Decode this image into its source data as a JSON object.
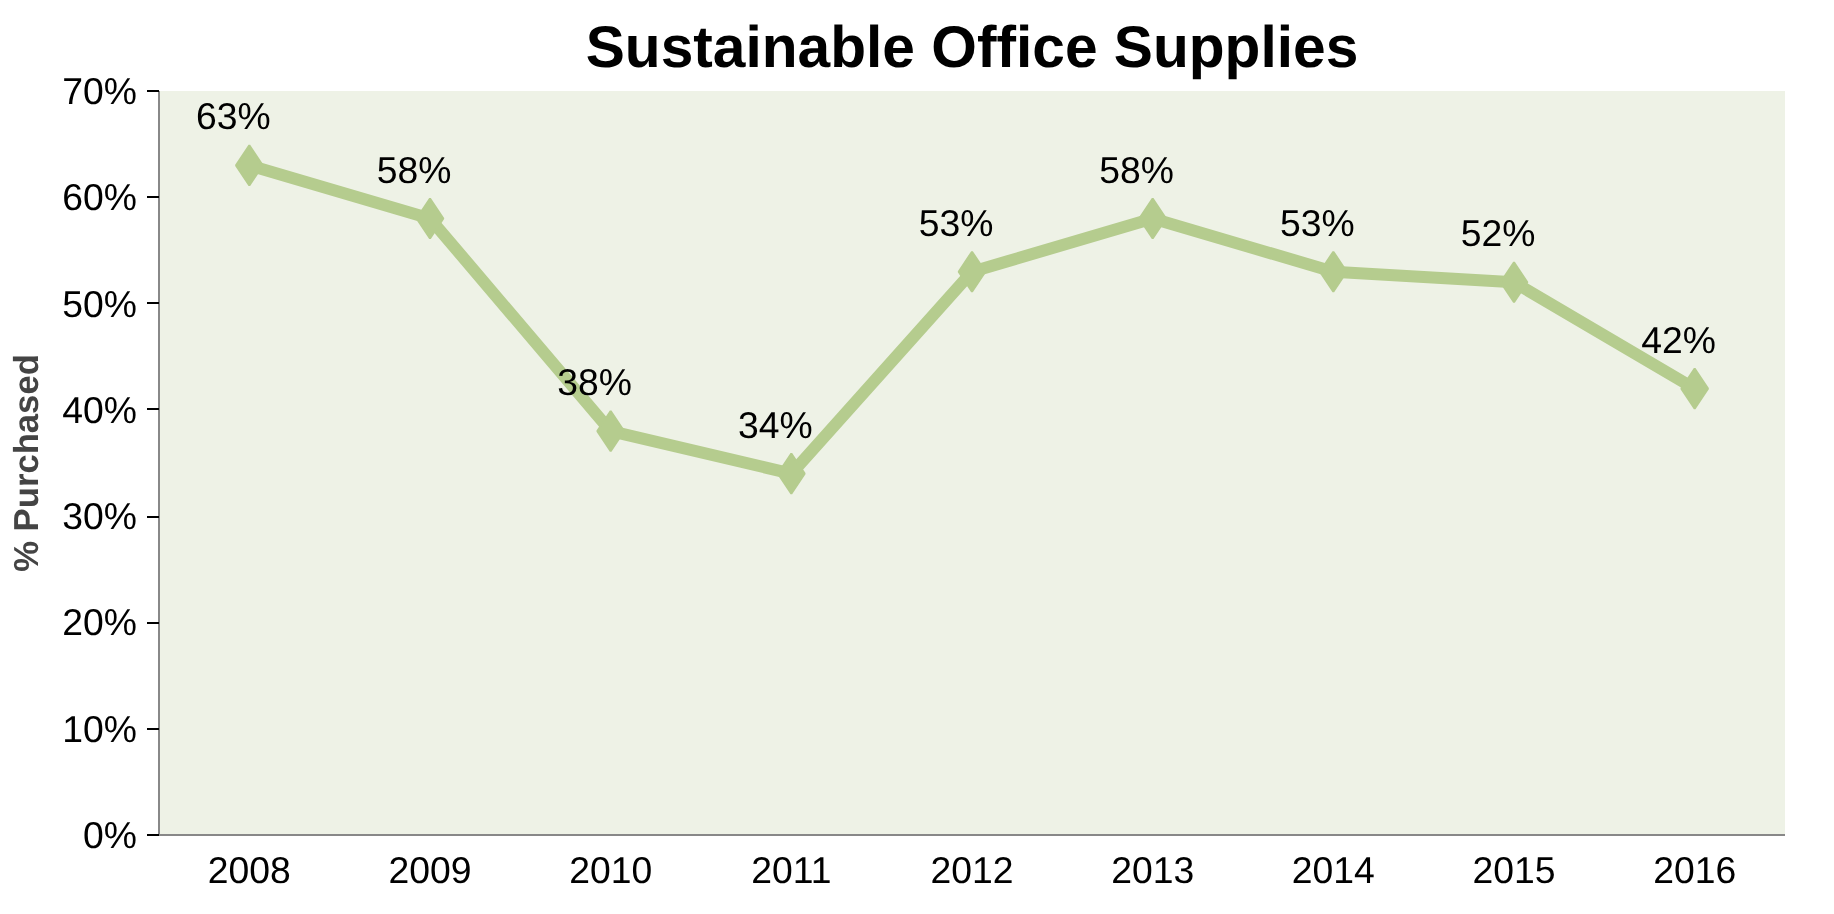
{
  "chart_data": {
    "type": "line",
    "title": "Sustainable Office Supplies",
    "ylabel": "% Purchased",
    "categories": [
      "2008",
      "2009",
      "2010",
      "2011",
      "2012",
      "2013",
      "2014",
      "2015",
      "2016"
    ],
    "series": [
      {
        "color": "#b5cc8e",
        "values": [
          63,
          58,
          38,
          34,
          53,
          58,
          53,
          52,
          42
        ],
        "value_labels": [
          "63%",
          "58%",
          "38%",
          "34%",
          "53%",
          "58%",
          "53%",
          "52%",
          "42%"
        ]
      }
    ],
    "ylim": [
      0,
      70
    ],
    "yticks": [
      {
        "value": 0,
        "label": "0%"
      },
      {
        "value": 10,
        "label": "10%"
      },
      {
        "value": 20,
        "label": "20%"
      },
      {
        "value": 30,
        "label": "30%"
      },
      {
        "value": 40,
        "label": "40%"
      },
      {
        "value": 50,
        "label": "50%"
      },
      {
        "value": 60,
        "label": "60%"
      },
      {
        "value": 70,
        "label": "70%"
      }
    ],
    "grid": false,
    "marker": "diamond",
    "line_style": "solid"
  }
}
